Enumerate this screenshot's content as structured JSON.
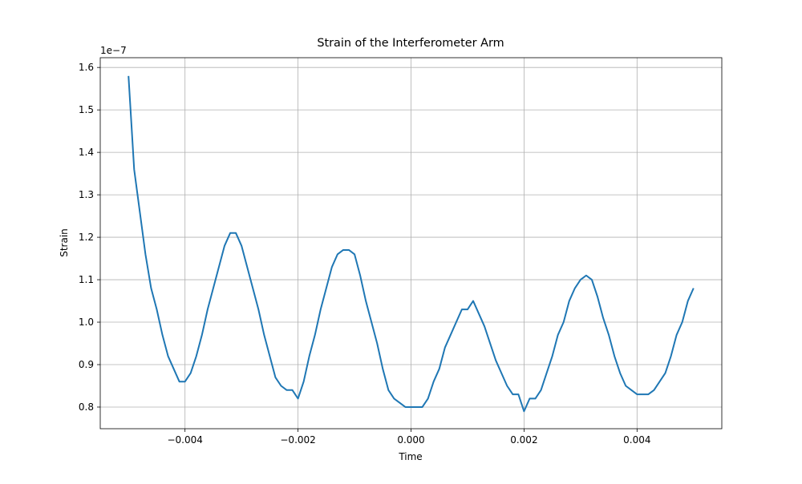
{
  "chart_data": {
    "type": "line",
    "title": "Strain of the Interferometer Arm",
    "x_label": "Time",
    "y_label": "Strain",
    "y_offset_label": "1e−7",
    "color": "#1f77b4",
    "grid": true,
    "xlim": [
      -0.0055,
      0.0055
    ],
    "ylim": [
      0.749,
      1.623
    ],
    "xticks": [
      {
        "value": -0.004,
        "label": "−0.004"
      },
      {
        "value": -0.002,
        "label": "−0.002"
      },
      {
        "value": 0,
        "label": "0.000"
      },
      0.002,
      0.004
    ],
    "yticks": [
      0.8,
      0.9,
      {
        "value": 1.0,
        "label": "1.0"
      },
      1.1,
      1.2,
      1.3,
      1.4,
      1.5,
      1.6
    ],
    "x": [
      -0.005,
      -0.0049,
      -0.0048,
      -0.0047,
      -0.0046,
      -0.0045,
      -0.0044,
      -0.0043,
      -0.0042,
      -0.0041,
      -0.004,
      -0.0039,
      -0.0038,
      -0.0037,
      -0.0036,
      -0.0035,
      -0.0034,
      -0.0033,
      -0.0032,
      -0.0031,
      -0.003,
      -0.0029,
      -0.0028,
      -0.0027,
      -0.0026,
      -0.0025,
      -0.0024,
      -0.0023,
      -0.0022,
      -0.0021,
      -0.002,
      -0.0019,
      -0.0018,
      -0.0017,
      -0.0016,
      -0.0015,
      -0.0014,
      -0.0013,
      -0.0012,
      -0.0011,
      -0.001,
      -0.0009,
      -0.0008,
      -0.0007,
      -0.0006,
      -0.0005,
      -0.0004,
      -0.0003,
      -0.0002,
      -0.0001,
      0,
      0.0001,
      0.0002,
      0.0003,
      0.0004,
      0.0005,
      0.0006,
      0.0007,
      0.0008,
      0.0009,
      0.001,
      0.0011,
      0.0012,
      0.0013,
      0.0014,
      0.0015,
      0.0016,
      0.0017,
      0.0018,
      0.0019,
      0.002,
      0.0021,
      0.0022,
      0.0023,
      0.0024,
      0.0025,
      0.0026,
      0.0027,
      0.0028,
      0.0029,
      0.003,
      0.0031,
      0.0032,
      0.0033,
      0.0034,
      0.0035,
      0.0036,
      0.0037,
      0.0038,
      0.0039,
      0.004,
      0.0041,
      0.0042,
      0.0043,
      0.0044,
      0.0045,
      0.0046,
      0.0047,
      0.0048,
      0.0049,
      0.005
    ],
    "values": [
      1.58,
      1.36,
      1.26,
      1.16,
      1.08,
      1.03,
      0.97,
      0.92,
      0.89,
      0.86,
      0.86,
      0.88,
      0.92,
      0.97,
      1.03,
      1.08,
      1.13,
      1.18,
      1.21,
      1.21,
      1.18,
      1.13,
      1.08,
      1.03,
      0.97,
      0.92,
      0.87,
      0.85,
      0.84,
      0.84,
      0.82,
      0.86,
      0.92,
      0.97,
      1.03,
      1.08,
      1.13,
      1.16,
      1.17,
      1.17,
      1.16,
      1.11,
      1.05,
      1.0,
      0.95,
      0.89,
      0.84,
      0.82,
      0.81,
      0.8,
      0.8,
      0.8,
      0.8,
      0.82,
      0.86,
      0.89,
      0.94,
      0.97,
      1.0,
      1.03,
      1.03,
      1.05,
      1.02,
      0.99,
      0.95,
      0.91,
      0.88,
      0.85,
      0.83,
      0.83,
      0.79,
      0.82,
      0.82,
      0.84,
      0.88,
      0.92,
      0.97,
      1.0,
      1.05,
      1.08,
      1.1,
      1.11,
      1.1,
      1.06,
      1.01,
      0.97,
      0.92,
      0.88,
      0.85,
      0.84,
      0.83,
      0.83,
      0.83,
      0.84,
      0.86,
      0.88,
      0.92,
      0.97,
      1.0,
      1.05,
      1.08
    ]
  }
}
